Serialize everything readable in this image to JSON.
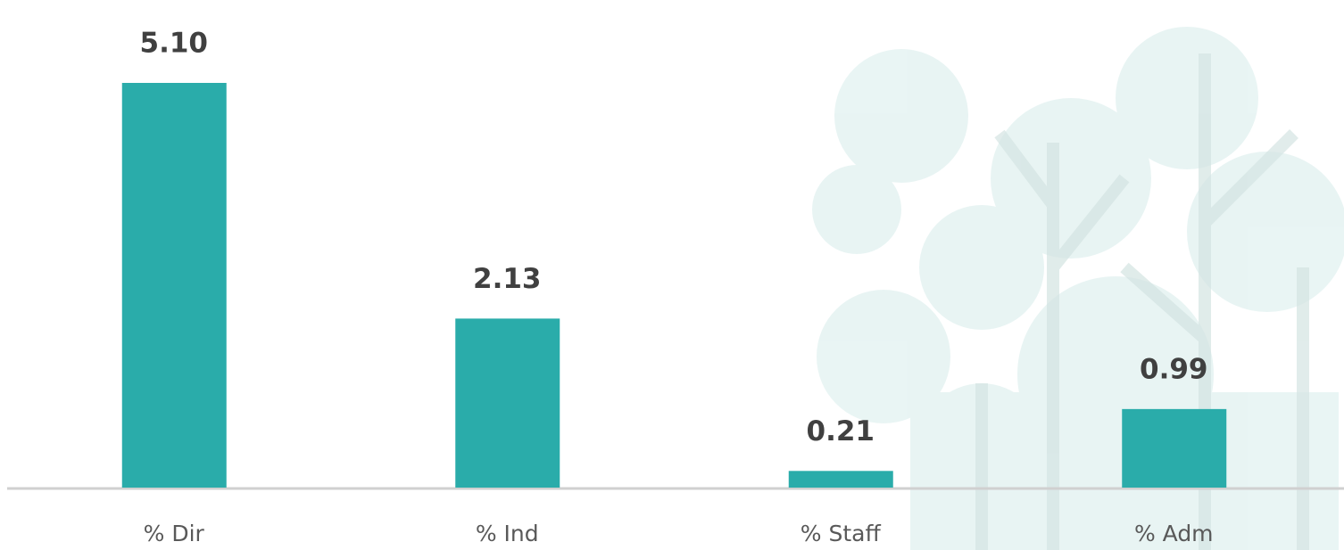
{
  "chart_data": {
    "type": "bar",
    "categories": [
      "% Dir",
      "% Ind",
      "% Staff",
      "% Adm"
    ],
    "values": [
      5.1,
      2.13,
      0.21,
      0.99
    ],
    "value_labels": [
      "5.10",
      "2.13",
      "0.21",
      "0.99"
    ],
    "color": "#2aacaa"
  }
}
